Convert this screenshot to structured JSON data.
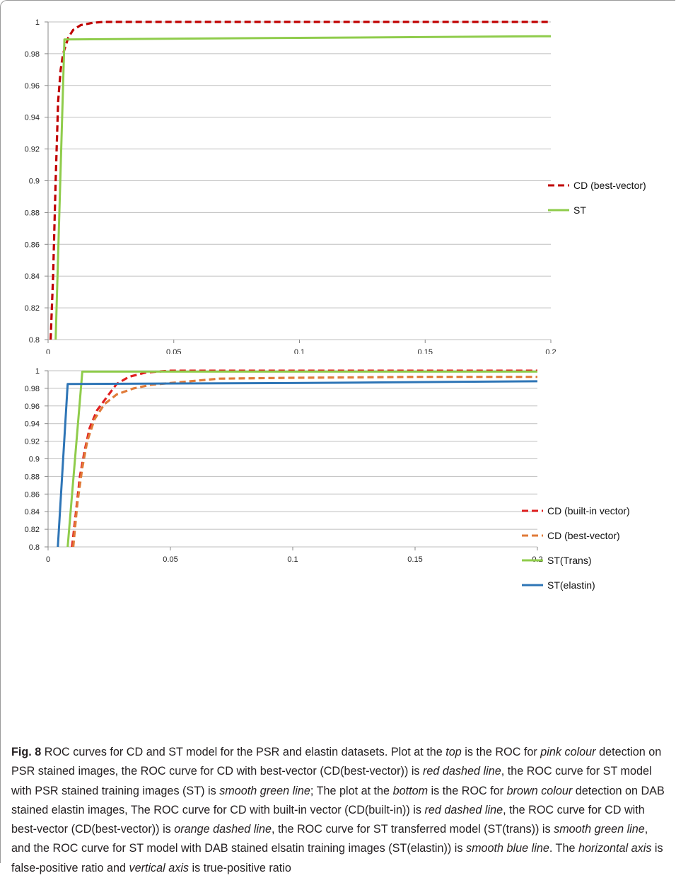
{
  "chart_data": [
    {
      "type": "line",
      "xlim": [
        0,
        0.2
      ],
      "ylim": [
        0.8,
        1
      ],
      "x_ticks": [
        "0",
        "0.05",
        "0.1",
        "0.15",
        "0.2"
      ],
      "y_ticks": [
        "0.8",
        "0.82",
        "0.84",
        "0.86",
        "0.88",
        "0.9",
        "0.92",
        "0.94",
        "0.96",
        "0.98",
        "1"
      ],
      "grid": "horizontal",
      "legend_position": "right",
      "series": [
        {
          "name": "CD (best-vector)",
          "color": "#c00000",
          "style": "dashed",
          "points": [
            [
              0.001,
              0.8
            ],
            [
              0.002,
              0.84
            ],
            [
              0.003,
              0.9
            ],
            [
              0.004,
              0.95
            ],
            [
              0.005,
              0.97
            ],
            [
              0.006,
              0.98
            ],
            [
              0.008,
              0.99
            ],
            [
              0.01,
              0.995
            ],
            [
              0.013,
              0.998
            ],
            [
              0.018,
              0.9995
            ],
            [
              0.022,
              1.0
            ],
            [
              0.2,
              1.0
            ]
          ]
        },
        {
          "name": "ST",
          "color": "#8fcc4b",
          "style": "solid",
          "points": [
            [
              0.003,
              0.8
            ],
            [
              0.0065,
              0.989
            ],
            [
              0.1,
              0.99
            ],
            [
              0.2,
              0.991
            ]
          ]
        }
      ]
    },
    {
      "type": "line",
      "xlim": [
        0,
        0.2
      ],
      "ylim": [
        0.8,
        1
      ],
      "x_ticks": [
        "0",
        "0.05",
        "0.1",
        "0.15",
        "0.2"
      ],
      "y_ticks": [
        "0.8",
        "0.82",
        "0.84",
        "0.86",
        "0.88",
        "0.9",
        "0.92",
        "0.94",
        "0.96",
        "0.98",
        "1"
      ],
      "grid": "horizontal",
      "legend_position": "right",
      "series": [
        {
          "name": "CD (built-in vector)",
          "color": "#e02020",
          "style": "dashed",
          "points": [
            [
              0.0098,
              0.8
            ],
            [
              0.011,
              0.83
            ],
            [
              0.013,
              0.88
            ],
            [
              0.015,
              0.91
            ],
            [
              0.017,
              0.935
            ],
            [
              0.02,
              0.955
            ],
            [
              0.024,
              0.97
            ],
            [
              0.028,
              0.985
            ],
            [
              0.033,
              0.993
            ],
            [
              0.04,
              0.998
            ],
            [
              0.05,
              1.0
            ],
            [
              0.2,
              1.0
            ]
          ]
        },
        {
          "name": "CD (best-vector)",
          "color": "#e07b39",
          "style": "dashed",
          "points": [
            [
              0.0103,
              0.8
            ],
            [
              0.012,
              0.85
            ],
            [
              0.014,
              0.89
            ],
            [
              0.016,
              0.92
            ],
            [
              0.019,
              0.945
            ],
            [
              0.023,
              0.962
            ],
            [
              0.028,
              0.973
            ],
            [
              0.035,
              0.98
            ],
            [
              0.042,
              0.984
            ],
            [
              0.05,
              0.986
            ],
            [
              0.07,
              0.991
            ],
            [
              0.1,
              0.992
            ],
            [
              0.15,
              0.993
            ],
            [
              0.2,
              0.993
            ]
          ]
        },
        {
          "name": "ST(Trans)",
          "color": "#8fcc4b",
          "style": "solid",
          "points": [
            [
              0.008,
              0.8
            ],
            [
              0.014,
              0.999
            ],
            [
              0.2,
              0.999
            ]
          ]
        },
        {
          "name": "ST(elastin)",
          "color": "#2e75b6",
          "style": "solid",
          "points": [
            [
              0.004,
              0.8
            ],
            [
              0.008,
              0.985
            ],
            [
              0.1,
              0.986
            ],
            [
              0.2,
              0.988
            ]
          ]
        }
      ]
    }
  ],
  "caption": {
    "label": "Fig. 8",
    "p1": " ROC curves for CD and ST model for the PSR and elastin datasets. Plot at the ",
    "i1": "top",
    "p2": " is the ROC for ",
    "i2": "pink colour",
    "p3": " detection on PSR stained images, the ROC curve for CD with best-vector (CD(best-vector)) is ",
    "i3": "red dashed line",
    "p4": ", the ROC curve for ST model with PSR stained training images (ST) is ",
    "i4": "smooth green line",
    "p5": "; The plot at the ",
    "i5": "bottom",
    "p6": " is the ROC for ",
    "i6": "brown colour",
    "p7": " detection on DAB stained elastin images, The ROC curve for CD with built-in vector (CD(built-in)) is ",
    "i7": "red dashed line",
    "p8": ", the ROC curve for CD with best-vector (CD(best-vector)) is ",
    "i8": "orange dashed line",
    "p9": ", the ROC curve for ST transferred model (ST(trans)) is ",
    "i9": "smooth green line",
    "p10": ", and the ROC curve for ST model with DAB stained elsatin training images (ST(elastin)) is ",
    "i10": "smooth blue line",
    "p11": ". The ",
    "i11": "horizontal axis",
    "p12": " is false-positive ratio and ",
    "i12": "vertical axis",
    "p13": " is true-positive ratio"
  }
}
